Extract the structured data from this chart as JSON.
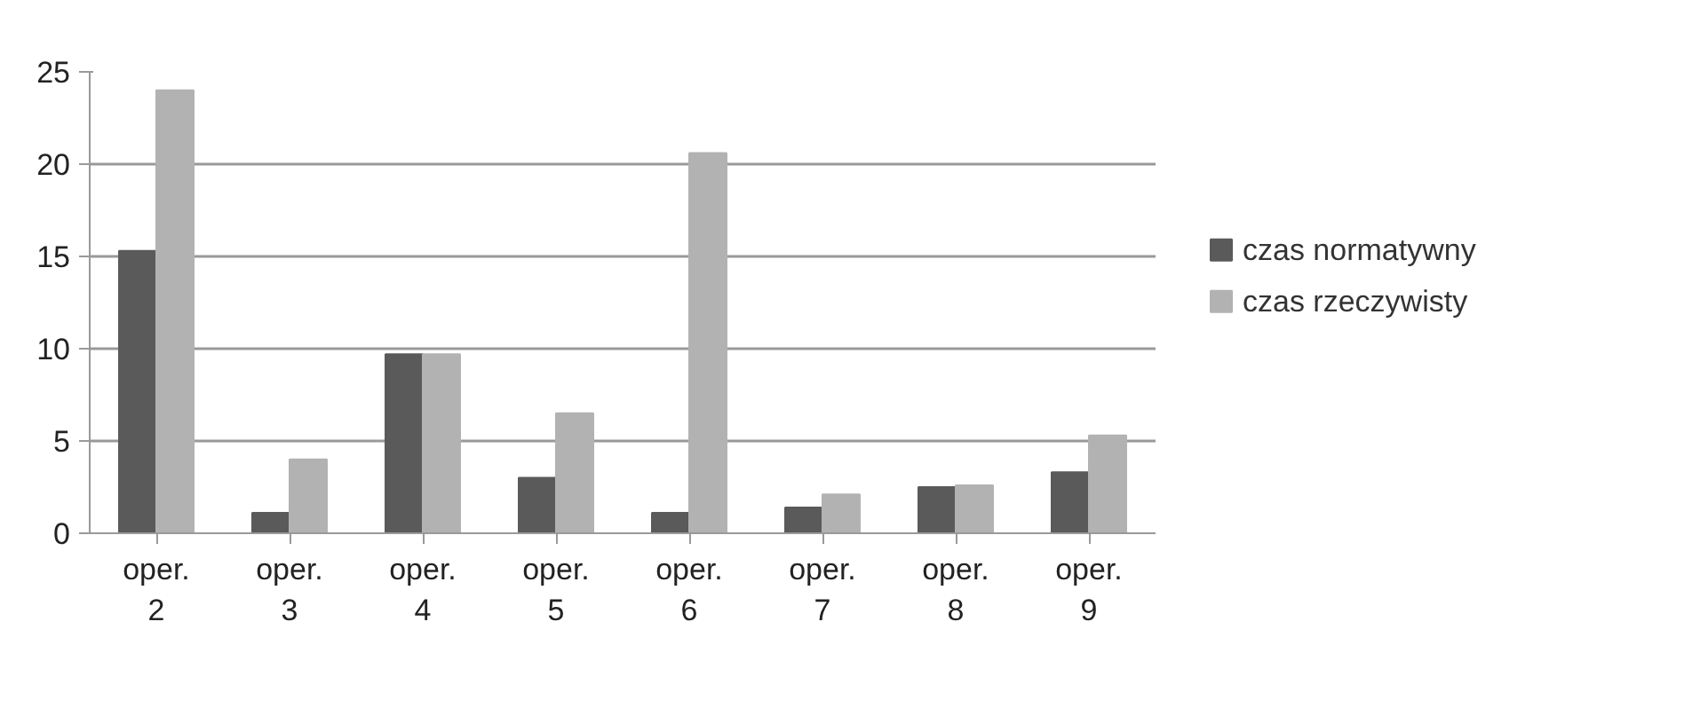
{
  "chart_data": {
    "type": "bar",
    "categories": [
      "oper. 2",
      "oper. 3",
      "oper. 4",
      "oper. 5",
      "oper. 6",
      "oper. 7",
      "oper. 8",
      "oper. 9"
    ],
    "series": [
      {
        "name": "czas normatywny",
        "color": "#5a5a5a",
        "values": [
          15.3,
          1.1,
          9.7,
          3.0,
          1.1,
          1.4,
          2.5,
          3.3
        ]
      },
      {
        "name": "czas rzeczywisty",
        "color": "#b2b2b2",
        "values": [
          24.0,
          4.0,
          9.7,
          6.5,
          20.6,
          2.1,
          2.6,
          5.3
        ]
      }
    ],
    "ylim": [
      0,
      25
    ],
    "yticks": [
      0,
      5,
      10,
      15,
      20,
      25
    ],
    "grid": "y",
    "legend": "right"
  }
}
